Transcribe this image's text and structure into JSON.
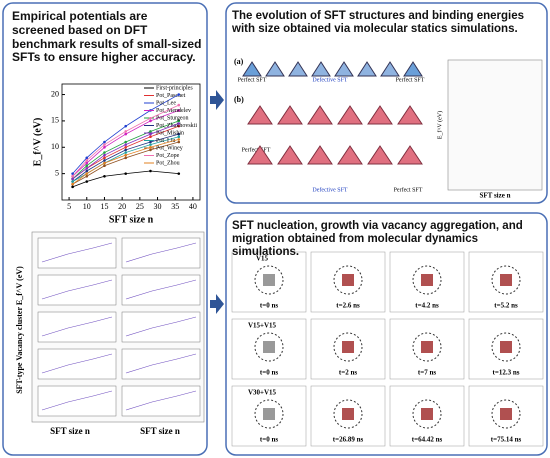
{
  "panels": [
    {
      "title": "Empirical potentials are screened based on DFT benchmark results of small-sized SFTs to ensure higher accuracy."
    },
    {
      "title": "The evolution of SFT structures and binding energies with size obtained via molecular statics simulations.",
      "part_a": "(a)",
      "part_b": "(b)",
      "perfect": "Perfect SFT",
      "defective": "Defective SFT",
      "y_label": "E_f^V (eV)",
      "x_label": "SFT size n"
    },
    {
      "title": "SFT nucleation, growth via vacancy aggregation, and migration obtained from molecular dynamics simulations.",
      "rows": [
        {
          "label": "V15",
          "times": [
            "t=0 ns",
            "t=2.6 ns",
            "t=4.2 ns",
            "t=5.2 ns"
          ]
        },
        {
          "label": "V15+V15",
          "times": [
            "t=0 ns",
            "t=2 ns",
            "t=7 ns",
            "t=12.3 ns"
          ]
        },
        {
          "label": "V30+V15",
          "times": [
            "t=0 ns",
            "t=26.89 ns",
            "t=64.42 ns",
            "t=75.14 ns"
          ]
        }
      ]
    }
  ],
  "chart_data": {
    "type": "line",
    "x_label": "SFT size n",
    "y_label": "E_f^V (eV)",
    "x": [
      6,
      10,
      15,
      21,
      28,
      36
    ],
    "xlim": [
      3,
      42
    ],
    "xticks": [
      5,
      10,
      15,
      20,
      25,
      30,
      35,
      40
    ],
    "ylim": [
      0,
      22
    ],
    "yticks": [
      5,
      10,
      15,
      20
    ],
    "series": [
      {
        "name": "First-principles",
        "color": "#000000",
        "values": [
          2.5,
          3.5,
          4.5,
          5,
          5.5,
          5
        ]
      },
      {
        "name": "Pot_Pascuet",
        "color": "#e03030",
        "values": [
          4,
          6,
          8,
          10,
          12,
          14
        ]
      },
      {
        "name": "Pot_Lee",
        "color": "#2040d0",
        "values": [
          5,
          8,
          11,
          14,
          17,
          20
        ]
      },
      {
        "name": "Pot_Mendelev",
        "color": "#d020c0",
        "values": [
          4.5,
          7,
          10,
          12.5,
          15,
          17
        ]
      },
      {
        "name": "Pot_Sturgeon",
        "color": "#20a040",
        "values": [
          4,
          6.5,
          9,
          11,
          13,
          15
        ]
      },
      {
        "name": "Pot_Zhakhovskii",
        "color": "#203080",
        "values": [
          3.5,
          5.5,
          7.5,
          9.5,
          11,
          12.5
        ]
      },
      {
        "name": "Pot_Mishin",
        "color": "#8030c0",
        "values": [
          4,
          6,
          8.5,
          10.5,
          12.5,
          14.5
        ]
      },
      {
        "name": "Pot_Liu",
        "color": "#20a0a0",
        "values": [
          3.5,
          5,
          7,
          9,
          10.5,
          12
        ]
      },
      {
        "name": "Pot_Winey",
        "color": "#905020",
        "values": [
          3,
          4.5,
          6.5,
          8,
          9.5,
          11
        ]
      },
      {
        "name": "Pot_Zope",
        "color": "#f070b0",
        "values": [
          4.5,
          7.5,
          10.5,
          13,
          15.5,
          18
        ]
      },
      {
        "name": "Pot_Zhou",
        "color": "#e08020",
        "values": [
          3,
          5,
          7,
          8.5,
          10,
          11.5
        ]
      }
    ],
    "legend": "upper-right",
    "panel_y_label": "SFT-type Vacancy cluster E_f^V (eV)",
    "panel_x_label": "SFT size n"
  }
}
